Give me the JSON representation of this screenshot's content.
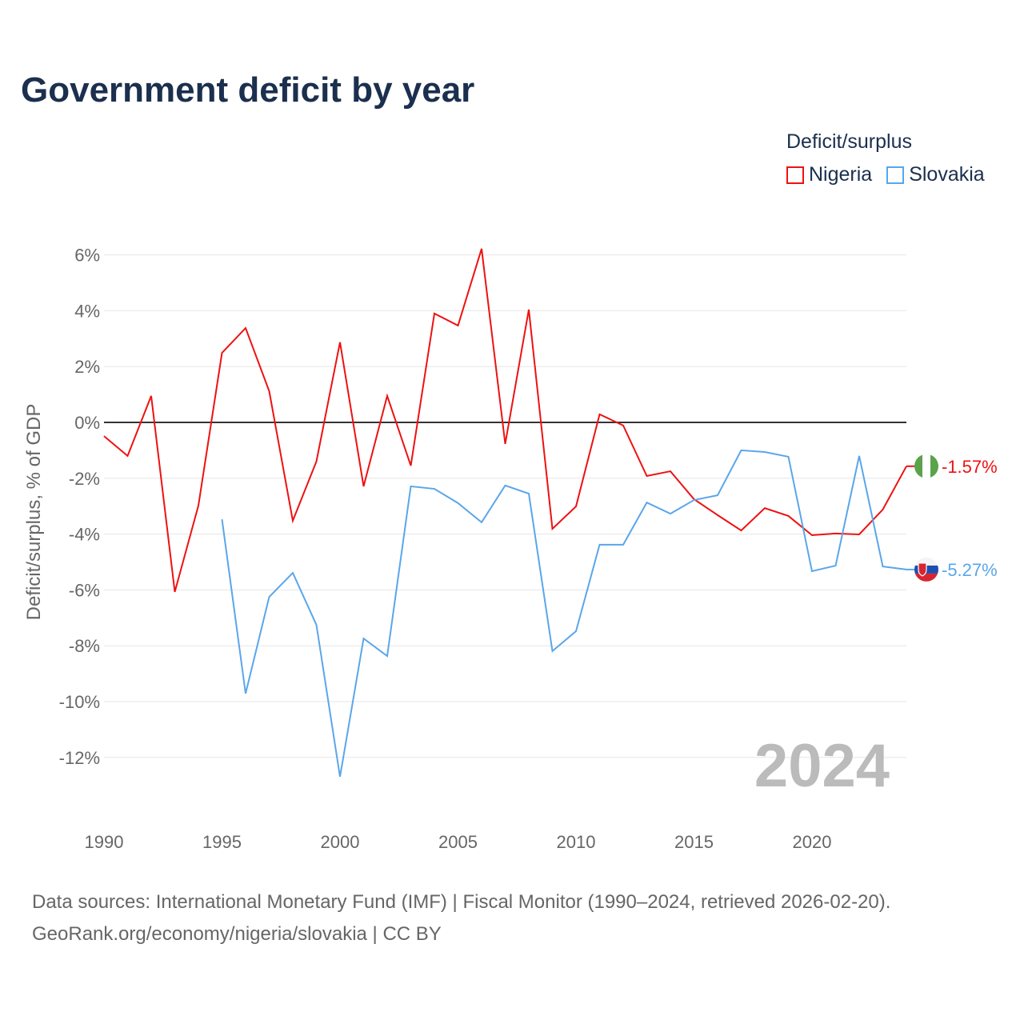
{
  "chart_data": {
    "type": "line",
    "title": "Government deficit by year",
    "ylabel": "Deficit/surplus, % of GDP",
    "xlabel": "",
    "legend_title": "Deficit/surplus",
    "legend_position": "top-right",
    "xlim": [
      1990,
      2024
    ],
    "ylim": [
      -14,
      7
    ],
    "x_ticks": [
      1990,
      1995,
      2000,
      2005,
      2010,
      2015,
      2020
    ],
    "y_ticks": [
      -12,
      -10,
      -8,
      -6,
      -4,
      -2,
      0,
      2,
      4,
      6
    ],
    "y_tick_labels": [
      "-12%",
      "-10%",
      "-8%",
      "-6%",
      "-4%",
      "-2%",
      "0%",
      "2%",
      "4%",
      "6%"
    ],
    "grid": true,
    "year_watermark": "2024",
    "series": [
      {
        "name": "Nigeria",
        "color": "#ee1111",
        "end_label": "-1.57%",
        "flag": "nigeria",
        "x": [
          1990,
          1991,
          1992,
          1993,
          1994,
          1995,
          1996,
          1997,
          1998,
          1999,
          2000,
          2001,
          2002,
          2003,
          2004,
          2005,
          2006,
          2007,
          2008,
          2009,
          2010,
          2011,
          2012,
          2013,
          2014,
          2015,
          2016,
          2017,
          2018,
          2019,
          2020,
          2021,
          2022,
          2023,
          2024
        ],
        "values": [
          -0.49,
          -1.2,
          0.95,
          -6.07,
          -2.98,
          2.49,
          3.38,
          1.12,
          -3.52,
          -1.4,
          2.87,
          -2.29,
          0.95,
          -1.55,
          3.9,
          3.47,
          6.22,
          -0.77,
          4.04,
          -3.81,
          -3.01,
          0.29,
          -0.11,
          -1.92,
          -1.75,
          -2.75,
          -3.32,
          -3.87,
          -3.07,
          -3.35,
          -4.04,
          -3.98,
          -4.01,
          -3.12,
          -1.57
        ]
      },
      {
        "name": "Slovakia",
        "color": "#5aa6ea",
        "end_label": "-5.27%",
        "flag": "slovakia",
        "x": [
          1995,
          1996,
          1997,
          1998,
          1999,
          2000,
          2001,
          2002,
          2003,
          2004,
          2005,
          2006,
          2007,
          2008,
          2009,
          2010,
          2011,
          2012,
          2013,
          2014,
          2015,
          2016,
          2017,
          2018,
          2019,
          2020,
          2021,
          2022,
          2023,
          2024
        ],
        "values": [
          -3.47,
          -9.71,
          -6.25,
          -5.39,
          -7.25,
          -12.69,
          -7.74,
          -8.37,
          -2.29,
          -2.38,
          -2.89,
          -3.58,
          -2.26,
          -2.55,
          -8.19,
          -7.48,
          -4.38,
          -4.38,
          -2.87,
          -3.27,
          -2.78,
          -2.61,
          -1.0,
          -1.06,
          -1.23,
          -5.33,
          -5.13,
          -1.2,
          -5.16,
          -5.27
        ]
      }
    ]
  },
  "source": {
    "line1": "Data sources: International Monetary Fund (IMF) | Fiscal Monitor (1990–2024, retrieved 2026-02-20).",
    "line2": "GeoRank.org/economy/nigeria/slovakia | CC BY"
  }
}
